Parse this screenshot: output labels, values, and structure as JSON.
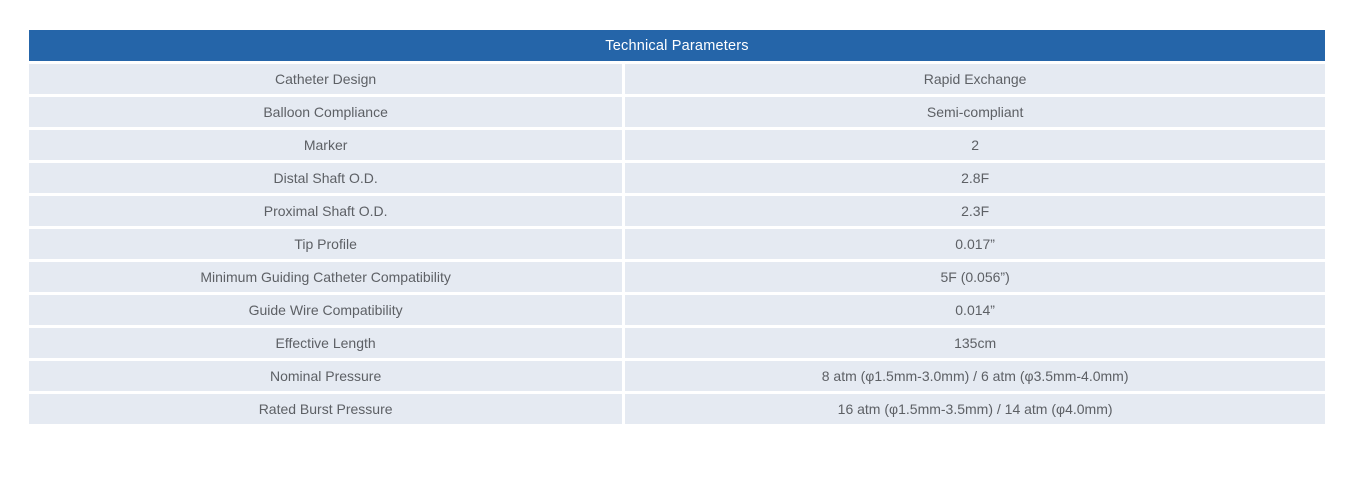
{
  "table": {
    "title": "Technical Parameters",
    "header_bg": "#2565a9",
    "header_text_color": "#ffffff",
    "cell_bg": "#e5eaf2",
    "body_text_color": "#5d6065",
    "rows": [
      {
        "param": "Catheter Design",
        "value": "Rapid Exchange"
      },
      {
        "param": "Balloon Compliance",
        "value": "Semi-compliant"
      },
      {
        "param": "Marker",
        "value": "2"
      },
      {
        "param": "Distal Shaft O.D.",
        "value": "2.8F"
      },
      {
        "param": "Proximal Shaft O.D.",
        "value": "2.3F"
      },
      {
        "param": "Tip Profile",
        "value": "0.017”"
      },
      {
        "param": "Minimum Guiding Catheter Compatibility",
        "value": "5F (0.056”)"
      },
      {
        "param": "Guide Wire Compatibility",
        "value": "0.014”"
      },
      {
        "param": "Effective Length",
        "value": "135cm"
      },
      {
        "param": "Nominal Pressure",
        "value": "8 atm (φ1.5mm-3.0mm) / 6 atm (φ3.5mm-4.0mm)"
      },
      {
        "param": "Rated Burst Pressure",
        "value": "16 atm (φ1.5mm-3.5mm) / 14 atm (φ4.0mm)"
      }
    ]
  }
}
